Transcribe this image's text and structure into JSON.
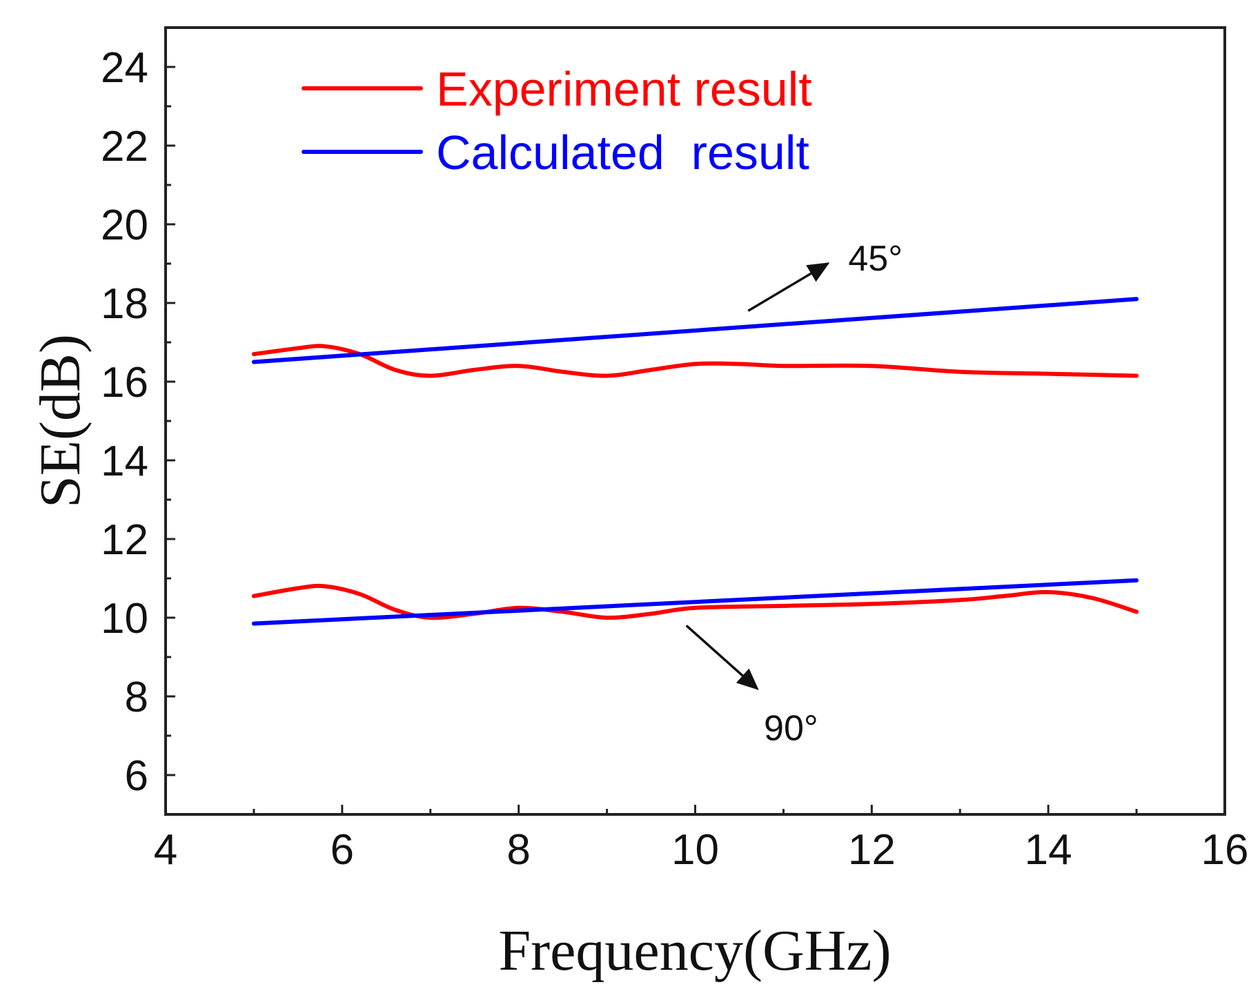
{
  "chart_data": {
    "type": "line",
    "title": "",
    "xlabel": "Frequency(GHz)",
    "ylabel": "SE(dB)",
    "xlim": [
      4,
      16
    ],
    "ylim": [
      5,
      25
    ],
    "xticks": [
      4,
      6,
      8,
      10,
      12,
      14,
      16
    ],
    "yticks": [
      6,
      8,
      10,
      12,
      14,
      16,
      18,
      20,
      22,
      24
    ],
    "grid": false,
    "legend_position": "top-left",
    "colors": {
      "experiment": "#ff0000",
      "calculated": "#0000ff"
    },
    "series": [
      {
        "name": "Experiment result",
        "group": "45°",
        "color": "#ff0000",
        "x": [
          5,
          5.5,
          5.8,
          6.2,
          6.6,
          7,
          7.5,
          8,
          8.5,
          9,
          9.5,
          10,
          10.5,
          11,
          12,
          13,
          14,
          15
        ],
        "y": [
          16.7,
          16.85,
          16.9,
          16.7,
          16.3,
          16.15,
          16.3,
          16.4,
          16.25,
          16.15,
          16.3,
          16.45,
          16.45,
          16.4,
          16.4,
          16.25,
          16.2,
          16.15
        ]
      },
      {
        "name": "Calculated result",
        "group": "45°",
        "color": "#0000ff",
        "x": [
          5,
          15
        ],
        "y": [
          16.5,
          18.1
        ]
      },
      {
        "name": "Experiment result",
        "group": "90°",
        "color": "#ff0000",
        "x": [
          5,
          5.5,
          5.8,
          6.2,
          6.6,
          7,
          7.5,
          8,
          8.5,
          9,
          9.5,
          10,
          11,
          12,
          13,
          13.5,
          14,
          14.5,
          15
        ],
        "y": [
          10.55,
          10.75,
          10.8,
          10.6,
          10.2,
          10.0,
          10.1,
          10.25,
          10.15,
          10.0,
          10.1,
          10.25,
          10.3,
          10.35,
          10.45,
          10.55,
          10.65,
          10.5,
          10.15
        ]
      },
      {
        "name": "Calculated result",
        "group": "90°",
        "color": "#0000ff",
        "x": [
          5,
          15
        ],
        "y": [
          9.85,
          10.95
        ]
      }
    ],
    "legend": [
      {
        "label": "Experiment result",
        "color": "#ff0000"
      },
      {
        "label": "Calculated  result",
        "color": "#0000ff"
      }
    ],
    "annotations": [
      {
        "text": "45°",
        "arrow_from": [
          10.6,
          17.8
        ],
        "arrow_to": [
          11.5,
          19.0
        ]
      },
      {
        "text": "90°",
        "arrow_from": [
          9.9,
          9.8
        ],
        "arrow_to": [
          10.7,
          8.2
        ]
      }
    ]
  }
}
